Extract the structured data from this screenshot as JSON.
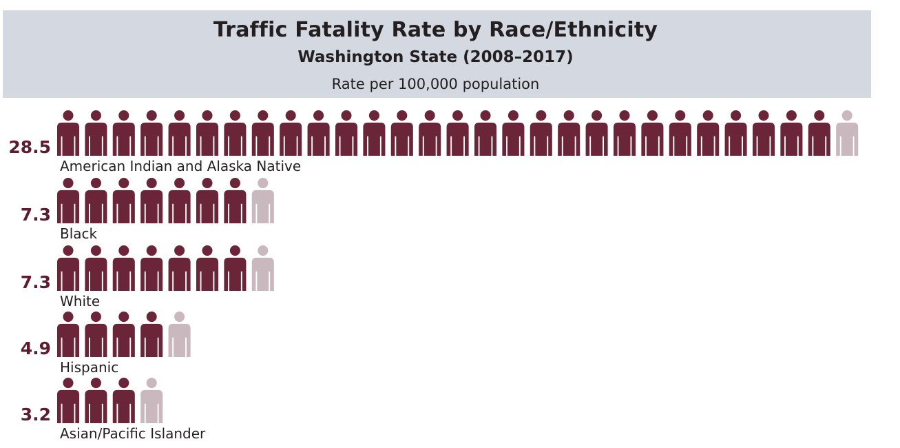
{
  "chart_data": {
    "type": "bar",
    "title": "Traffic Fatality Rate by Race/Ethnicity",
    "subtitle": "Washington State (2008–2017)",
    "note": "Rate per 100,000 population",
    "categories": [
      "American Indian and Alaska Native",
      "Black",
      "White",
      "Hispanic",
      "Asian/Pacific Islander"
    ],
    "values": [
      28.5,
      7.3,
      7.3,
      4.9,
      3.2
    ],
    "value_labels": [
      "28.5",
      "7.3",
      "7.3",
      "4.9",
      "3.2"
    ],
    "unit_per_icon": 1,
    "colors": {
      "filled": "#6b2538",
      "remainder": "#c9b9bf",
      "value_text": "#5e1d2e"
    }
  }
}
